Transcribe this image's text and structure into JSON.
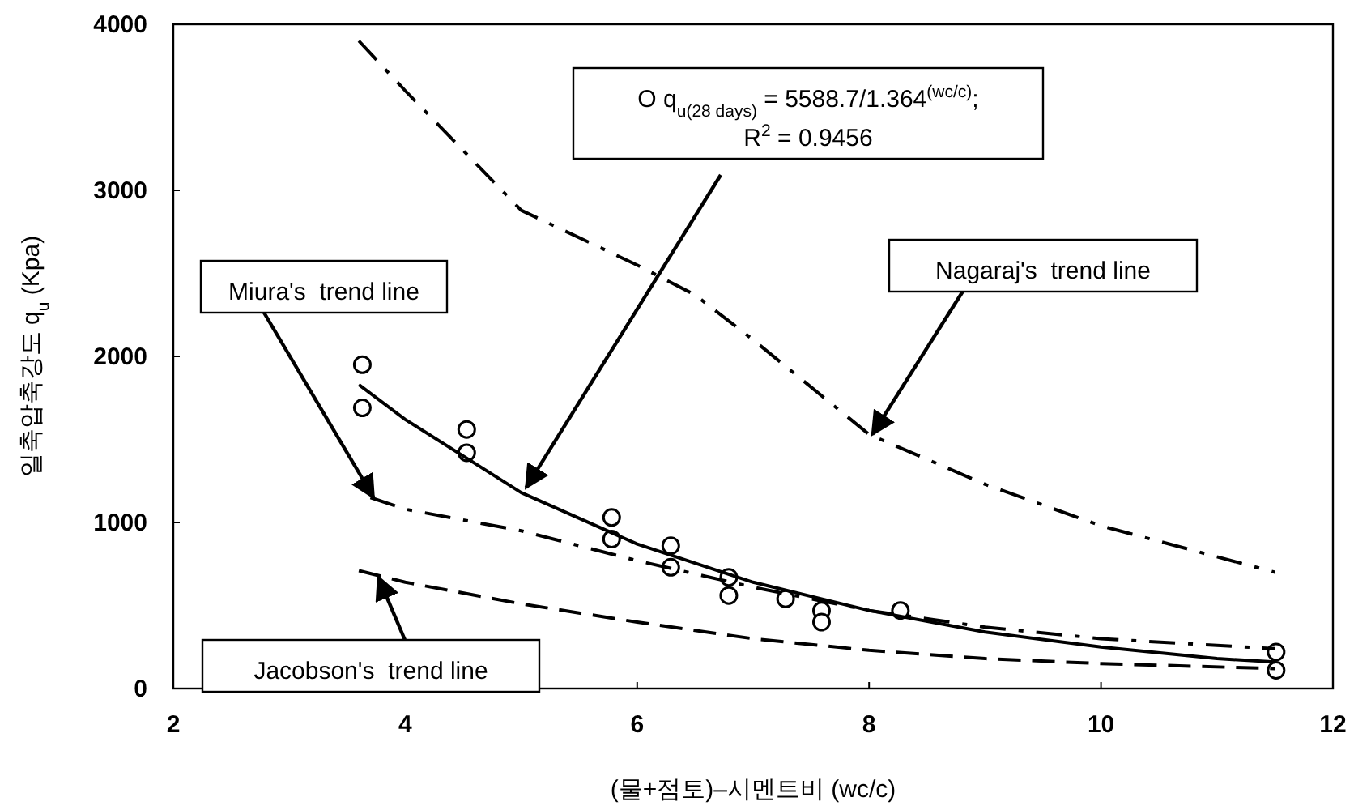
{
  "chart_data": {
    "type": "scatter",
    "xlabel": "(물+점토)–시멘트비 (wc/c)",
    "ylabel": "일축압축강도 q$_{u}$ (Kpa)",
    "xlim": [
      2,
      12
    ],
    "xticks": [
      2,
      4,
      6,
      8,
      10,
      12
    ],
    "ylim": [
      0,
      4000
    ],
    "yticks": [
      0,
      1000,
      2000,
      3000,
      4000
    ],
    "grid": false,
    "series": [
      {
        "type": "scatter",
        "marker": "circle",
        "color": "#000000",
        "x": [
          3.63,
          3.63,
          4.53,
          4.53,
          5.78,
          5.78,
          6.29,
          6.29,
          6.79,
          6.79,
          7.28,
          7.59,
          7.59,
          8.27,
          11.51,
          11.51
        ],
        "values": [
          1950,
          1690,
          1560,
          1420,
          1030,
          900,
          860,
          730,
          670,
          560,
          540,
          470,
          400,
          470,
          220,
          110
        ]
      },
      {
        "type": "line",
        "line_style": "solid",
        "color": "#000000",
        "x": [
          3.6,
          4,
          5,
          6,
          7,
          8,
          9,
          10,
          11,
          11.5
        ],
        "values": [
          1830,
          1620,
          1180,
          870,
          640,
          470,
          340,
          250,
          180,
          160
        ]
      },
      {
        "type": "line",
        "name": "Miura's  trend line",
        "line_style": "dashdot",
        "color": "#000000",
        "x": [
          3.7,
          4,
          5,
          6,
          7,
          8,
          9,
          10,
          11.5
        ],
        "values": [
          1150,
          1080,
          950,
          770,
          610,
          470,
          370,
          300,
          240
        ]
      },
      {
        "type": "line",
        "name": "Nagaraj's  trend line",
        "line_style": "dashdot",
        "color": "#000000",
        "x": [
          3.6,
          4,
          5,
          6,
          6.5,
          7,
          8,
          9,
          10,
          11.5
        ],
        "values": [
          3900,
          3600,
          2880,
          2550,
          2370,
          2100,
          1530,
          1230,
          980,
          700
        ]
      },
      {
        "type": "line",
        "name": "Jacobson's  trend line",
        "line_style": "dashed",
        "color": "#000000",
        "x": [
          3.6,
          4,
          5,
          6,
          7,
          8,
          9,
          10,
          11.5
        ],
        "values": [
          710,
          640,
          510,
          400,
          300,
          230,
          180,
          150,
          120
        ]
      }
    ],
    "annotations": [
      "O q$_{u(28 days)}$ = 5588.7/1.364$^{(wc/c)}$;",
      "R$^{2}$ = 0.9456"
    ]
  }
}
